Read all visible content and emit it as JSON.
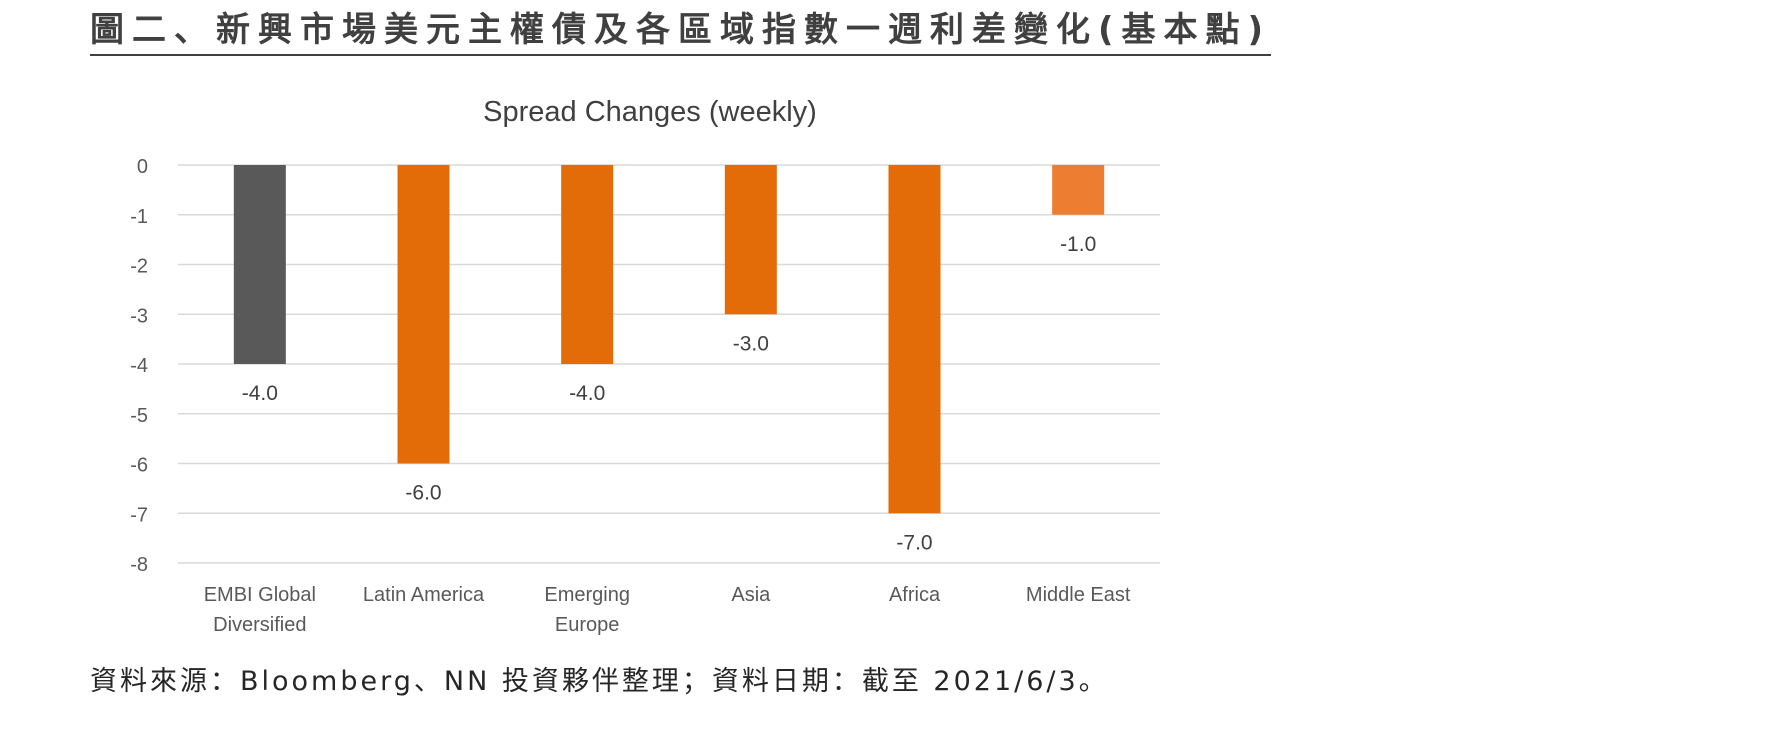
{
  "heading": "圖二、新興市場美元主權債及各區域指數一週利差變化(基本點)",
  "source_note": "資料來源：Bloomberg、NN 投資夥伴整理；資料日期：截至 2021/6/3。",
  "colors": {
    "embi_bar": "#595959",
    "region_bar": "#E36C09",
    "middle_east_bar": "#ED7D31",
    "gridline": "#D9D9D9",
    "axis_text": "#595959",
    "title_text": "#404040"
  },
  "chart_data": {
    "type": "bar",
    "title": "Spread Changes (weekly)",
    "xlabel": "",
    "ylabel": "",
    "categories": [
      [
        "EMBI Global",
        "Diversified"
      ],
      [
        "Latin America"
      ],
      [
        "Emerging",
        "Europe"
      ],
      [
        "Asia"
      ],
      [
        "Africa"
      ],
      [
        "Middle East"
      ]
    ],
    "values": [
      -4.0,
      -6.0,
      -4.0,
      -3.0,
      -7.0,
      -1.0
    ],
    "data_labels": [
      "-4.0",
      "-6.0",
      "-4.0",
      "-3.0",
      "-7.0",
      "-1.0"
    ],
    "bar_colors": [
      "#595959",
      "#E36C09",
      "#E36C09",
      "#E36C09",
      "#E36C09",
      "#ED7D31"
    ],
    "ylim": [
      -8,
      0
    ],
    "yticks": [
      0,
      -1,
      -2,
      -3,
      -4,
      -5,
      -6,
      -7,
      -8
    ],
    "ytick_labels": [
      "0",
      "-1",
      "-2",
      "-3",
      "-4",
      "-5",
      "-6",
      "-7",
      "-8"
    ],
    "grid": true,
    "legend": "none"
  }
}
